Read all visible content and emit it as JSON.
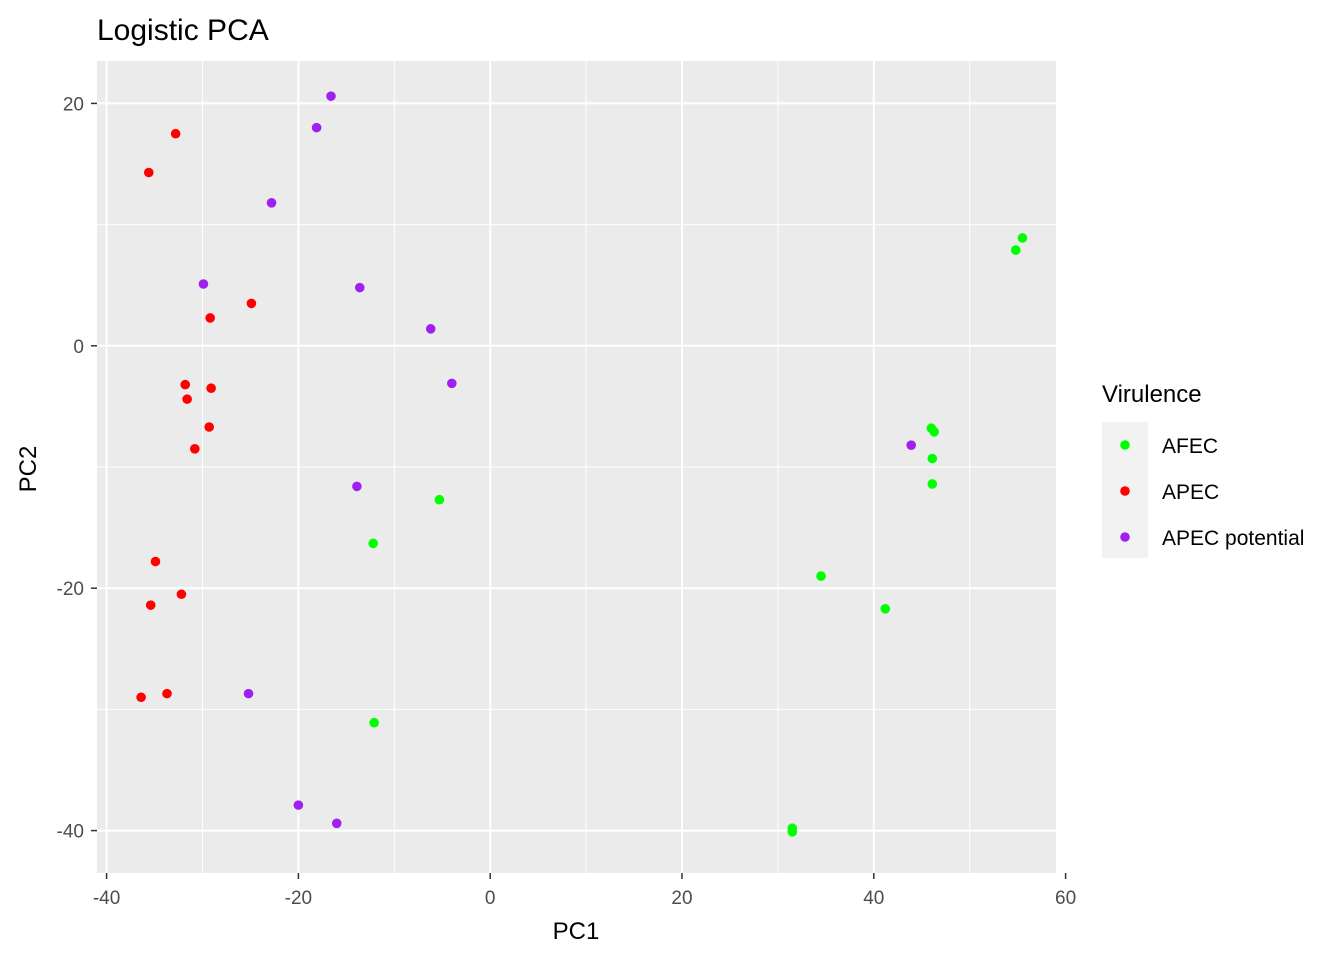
{
  "chart_data": {
    "type": "scatter",
    "title": "Logistic PCA",
    "xlabel": "PC1",
    "ylabel": "PC2",
    "xlim": [
      -41,
      59
    ],
    "ylim": [
      -43.5,
      23.5
    ],
    "xticks": [
      -40,
      -20,
      0,
      20,
      40,
      60
    ],
    "yticks": [
      -40,
      -20,
      0,
      20
    ],
    "grid": true,
    "legend": {
      "title": "Virulence",
      "placement": "right",
      "entries": [
        "AFEC",
        "APEC",
        "APEC potential"
      ]
    },
    "series": [
      {
        "name": "AFEC",
        "color": "#00ff00",
        "points": [
          [
            55.5,
            8.9
          ],
          [
            54.8,
            7.9
          ],
          [
            46.0,
            -6.8
          ],
          [
            46.3,
            -7.1
          ],
          [
            46.1,
            -9.3
          ],
          [
            46.1,
            -11.4
          ],
          [
            -5.3,
            -12.7
          ],
          [
            -12.2,
            -16.3
          ],
          [
            34.5,
            -19.0
          ],
          [
            41.2,
            -21.7
          ],
          [
            -12.1,
            -31.1
          ],
          [
            31.5,
            -39.8
          ],
          [
            31.5,
            -40.1
          ]
        ]
      },
      {
        "name": "APEC",
        "color": "#ff0000",
        "points": [
          [
            -32.8,
            17.5
          ],
          [
            -35.6,
            14.3
          ],
          [
            -24.9,
            3.5
          ],
          [
            -29.2,
            2.3
          ],
          [
            -31.8,
            -3.2
          ],
          [
            -29.1,
            -3.5
          ],
          [
            -31.6,
            -4.4
          ],
          [
            -29.3,
            -6.7
          ],
          [
            -30.8,
            -8.5
          ],
          [
            -34.9,
            -17.8
          ],
          [
            -32.2,
            -20.5
          ],
          [
            -35.4,
            -21.4
          ],
          [
            -33.7,
            -28.7
          ],
          [
            -36.4,
            -29.0
          ]
        ]
      },
      {
        "name": "APEC potential",
        "color": "#a020f0",
        "points": [
          [
            -16.6,
            20.6
          ],
          [
            -18.1,
            18.0
          ],
          [
            -22.8,
            11.8
          ],
          [
            -29.9,
            5.1
          ],
          [
            -13.6,
            4.8
          ],
          [
            -6.2,
            1.4
          ],
          [
            -4.0,
            -3.1
          ],
          [
            43.9,
            -8.2
          ],
          [
            -13.9,
            -11.6
          ],
          [
            -25.2,
            -28.7
          ],
          [
            -20.0,
            -37.9
          ],
          [
            -16.0,
            -39.4
          ]
        ]
      }
    ]
  }
}
